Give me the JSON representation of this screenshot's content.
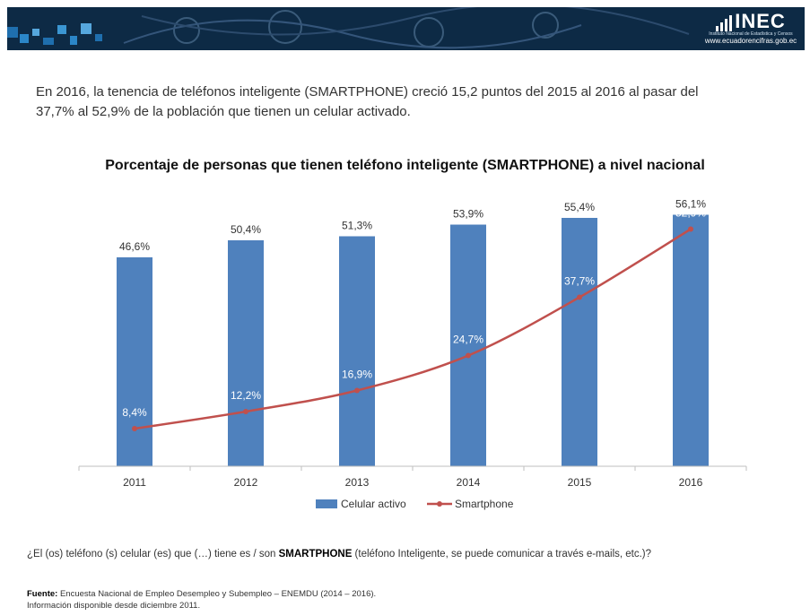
{
  "header": {
    "logo_text": "INEC",
    "logo_subtitle": "Instituto Nacional de Estadística y Censos",
    "url": "www.ecuadorencifras.gob.ec"
  },
  "intro": {
    "line1": "En 2016, la tenencia de teléfonos inteligente (SMARTPHONE) creció 15,2 puntos del 2015 al 2016 al pasar del",
    "line2": "37,7% al 52,9% de la población que tienen un celular activado."
  },
  "chart_data": {
    "type": "bar",
    "title": "Porcentaje de personas que tienen teléfono inteligente (SMARTPHONE) a nivel nacional",
    "categories": [
      "2011",
      "2012",
      "2013",
      "2014",
      "2015",
      "2016"
    ],
    "series": [
      {
        "name": "Celular activo",
        "type": "bar",
        "color": "#4f81bd",
        "values": [
          46.6,
          50.4,
          51.3,
          53.9,
          55.4,
          56.1
        ],
        "labels": [
          "46,6%",
          "50,4%",
          "51,3%",
          "53,9%",
          "55,4%",
          "56,1%"
        ]
      },
      {
        "name": "Smartphone",
        "type": "line",
        "color": "#c0504d",
        "values": [
          8.4,
          12.2,
          16.9,
          24.7,
          37.7,
          52.9
        ],
        "labels": [
          "8,4%",
          "12,2%",
          "16,9%",
          "24,7%",
          "37,7%",
          "52,9%"
        ]
      }
    ],
    "ylim": [
      0,
      60
    ],
    "grid": false,
    "legend": "bottom"
  },
  "question": {
    "pre": "¿El (os) teléfono (s) celular (es) que (…) tiene es / son ",
    "bold": "SMARTPHONE",
    "post": " (teléfono Inteligente, se puede comunicar a  través  e-mails, etc.)?"
  },
  "source": {
    "label": "Fuente:",
    "text": " Encuesta Nacional de Empleo Desempleo y Subempleo – ENEMDU (2014 – 2016).",
    "line2": "Información disponible desde diciembre 2011."
  }
}
